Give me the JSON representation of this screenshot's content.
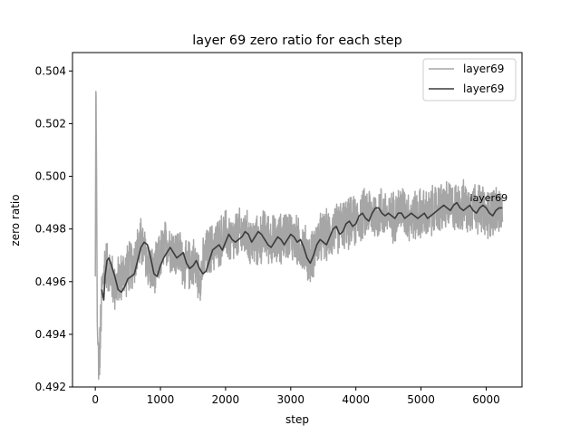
{
  "chart_data": {
    "type": "line",
    "title": "layer 69 zero ratio for each step",
    "xlabel": "step",
    "ylabel": "zero ratio",
    "xlim": [
      -350,
      6550
    ],
    "ylim": [
      0.492,
      0.5047
    ],
    "x_ticks": [
      0,
      1000,
      2000,
      3000,
      4000,
      5000,
      6000
    ],
    "x_tick_labels": [
      "0",
      "1000",
      "2000",
      "3000",
      "4000",
      "5000",
      "6000"
    ],
    "y_ticks": [
      0.492,
      0.494,
      0.496,
      0.498,
      0.5,
      0.502,
      0.504
    ],
    "y_tick_labels": [
      "0.492",
      "0.494",
      "0.496",
      "0.498",
      "0.500",
      "0.502",
      "0.504"
    ],
    "grid": false,
    "legend_position": "top-right",
    "annotation": {
      "text": "layer69",
      "x": 5750,
      "y": 0.4992
    },
    "series": [
      {
        "name": "layer69",
        "color": "#a6a6a6",
        "style": "raw-noisy",
        "noise_amplitude": 0.0011,
        "x": [
          0,
          10,
          20,
          30,
          40,
          60,
          80,
          100,
          150,
          200,
          300,
          400,
          500,
          600,
          700,
          800,
          900,
          1000,
          1100,
          1200,
          1300,
          1400,
          1500,
          1600,
          1700,
          1800,
          1900,
          2000,
          2100,
          2200,
          2300,
          2400,
          2500,
          2600,
          2700,
          2800,
          2900,
          3000,
          3100,
          3200,
          3300,
          3400,
          3500,
          3600,
          3700,
          3800,
          3900,
          4000,
          4100,
          4200,
          4300,
          4400,
          4500,
          4600,
          4700,
          4800,
          4900,
          5000,
          5100,
          5200,
          5300,
          5400,
          5500,
          5600,
          5700,
          5800,
          5900,
          6000,
          6100,
          6200,
          6250
        ],
        "y": [
          0.4962,
          0.504,
          0.4995,
          0.4945,
          0.4935,
          0.4928,
          0.494,
          0.4955,
          0.4968,
          0.4965,
          0.4958,
          0.4962,
          0.4965,
          0.4968,
          0.4975,
          0.4968,
          0.4962,
          0.497,
          0.4975,
          0.4972,
          0.497,
          0.4965,
          0.4968,
          0.4962,
          0.497,
          0.4973,
          0.4975,
          0.4978,
          0.4975,
          0.4978,
          0.4978,
          0.4975,
          0.4975,
          0.4978,
          0.4976,
          0.4975,
          0.4978,
          0.4978,
          0.4975,
          0.4973,
          0.4968,
          0.4975,
          0.4977,
          0.4978,
          0.498,
          0.4982,
          0.4982,
          0.4983,
          0.4985,
          0.4987,
          0.4985,
          0.4987,
          0.4984,
          0.4985,
          0.4988,
          0.4985,
          0.4985,
          0.4986,
          0.4985,
          0.4987,
          0.4988,
          0.4989,
          0.4988,
          0.4989,
          0.4988,
          0.4989,
          0.4988,
          0.4985,
          0.4987,
          0.4987,
          0.4986
        ]
      },
      {
        "name": "layer69",
        "color": "#3b3b3b",
        "style": "smoothed",
        "x": [
          100,
          130,
          150,
          180,
          210,
          250,
          300,
          350,
          400,
          450,
          500,
          550,
          600,
          650,
          700,
          750,
          800,
          850,
          900,
          950,
          1000,
          1050,
          1100,
          1150,
          1200,
          1250,
          1300,
          1350,
          1400,
          1450,
          1500,
          1550,
          1600,
          1650,
          1700,
          1750,
          1800,
          1850,
          1900,
          1950,
          2000,
          2050,
          2100,
          2150,
          2200,
          2250,
          2300,
          2350,
          2400,
          2450,
          2500,
          2550,
          2600,
          2650,
          2700,
          2750,
          2800,
          2850,
          2900,
          2950,
          3000,
          3050,
          3100,
          3150,
          3200,
          3250,
          3300,
          3350,
          3400,
          3450,
          3500,
          3550,
          3600,
          3650,
          3700,
          3750,
          3800,
          3850,
          3900,
          3950,
          4000,
          4050,
          4100,
          4150,
          4200,
          4250,
          4300,
          4350,
          4400,
          4450,
          4500,
          4550,
          4600,
          4650,
          4700,
          4750,
          4800,
          4850,
          4900,
          4950,
          5000,
          5050,
          5100,
          5150,
          5200,
          5250,
          5300,
          5350,
          5400,
          5450,
          5500,
          5550,
          5600,
          5650,
          5700,
          5750,
          5800,
          5850,
          5900,
          5950,
          6000,
          6050,
          6100,
          6150,
          6200,
          6250
        ],
        "y": [
          0.4957,
          0.4953,
          0.4962,
          0.4968,
          0.4969,
          0.4966,
          0.4962,
          0.4957,
          0.4956,
          0.4958,
          0.4961,
          0.4962,
          0.4963,
          0.4968,
          0.4973,
          0.4975,
          0.4974,
          0.4969,
          0.4963,
          0.4962,
          0.4966,
          0.4969,
          0.4971,
          0.4973,
          0.4971,
          0.4969,
          0.497,
          0.4971,
          0.4967,
          0.4965,
          0.4966,
          0.4968,
          0.4965,
          0.4963,
          0.4964,
          0.4968,
          0.4972,
          0.4973,
          0.4974,
          0.4972,
          0.4975,
          0.4978,
          0.4976,
          0.4975,
          0.4976,
          0.4977,
          0.4979,
          0.4978,
          0.4975,
          0.4977,
          0.4979,
          0.4978,
          0.4976,
          0.4974,
          0.4973,
          0.4975,
          0.4977,
          0.4976,
          0.4974,
          0.4976,
          0.4978,
          0.4977,
          0.4975,
          0.4976,
          0.4973,
          0.4969,
          0.4967,
          0.497,
          0.4974,
          0.4976,
          0.4975,
          0.4974,
          0.4977,
          0.498,
          0.4981,
          0.4978,
          0.4979,
          0.4982,
          0.4983,
          0.4981,
          0.4982,
          0.4985,
          0.4986,
          0.4984,
          0.4983,
          0.4986,
          0.4988,
          0.4988,
          0.4986,
          0.4985,
          0.4986,
          0.4985,
          0.4984,
          0.4986,
          0.4986,
          0.4984,
          0.4985,
          0.4986,
          0.4985,
          0.4984,
          0.4985,
          0.4986,
          0.4984,
          0.4985,
          0.4986,
          0.4987,
          0.4988,
          0.4989,
          0.4988,
          0.4987,
          0.4989,
          0.499,
          0.4988,
          0.4987,
          0.4988,
          0.4989,
          0.4987,
          0.4986,
          0.4988,
          0.4989,
          0.4988,
          0.4986,
          0.4985,
          0.4987,
          0.4988,
          0.4988
        ]
      }
    ]
  }
}
